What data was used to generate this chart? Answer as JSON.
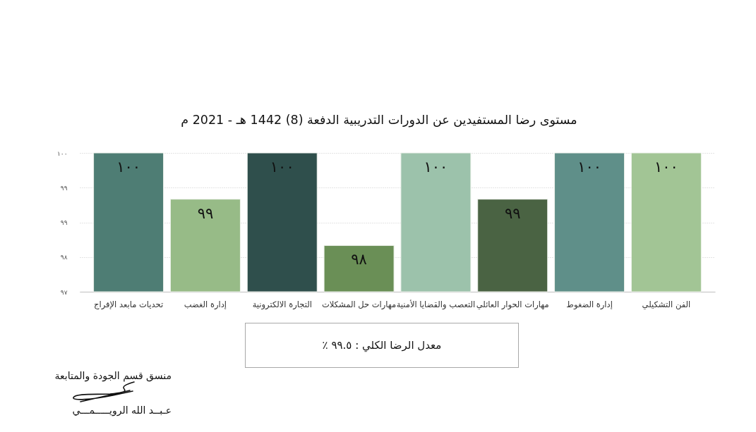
{
  "chart_data": {
    "type": "bar",
    "title": "مستوى رضا المستفيدين عن الدورات التدريبية الدفعة (8) 1442 هـ - 2021 م",
    "categories": [
      "تحديات مابعد الإفراج",
      "إدارة الغضب",
      "التجارة الالكترونية",
      "مهارات حل المشكلات",
      "التعصب والقضايا الأمنية",
      "مهارات الحوار العائلي",
      "إدارة الضغوط",
      "الفن التشكيلي"
    ],
    "values": [
      100,
      99,
      100,
      98,
      100,
      99,
      100,
      100
    ],
    "value_labels": [
      "١٠٠",
      "٩٩",
      "١٠٠",
      "٩٨",
      "١٠٠",
      "٩٩",
      "١٠٠",
      "١٠٠"
    ],
    "colors": [
      "#4e7d74",
      "#97bb87",
      "#2f4f4c",
      "#6a8f56",
      "#9cc2ab",
      "#4a6343",
      "#5f8f89",
      "#a2c595"
    ],
    "ylim": [
      97,
      100
    ],
    "yticks": [
      {
        "value": 97,
        "label": "٩٧"
      },
      {
        "value": 97.75,
        "label": "٩٨"
      },
      {
        "value": 98.5,
        "label": "٩٩"
      },
      {
        "value": 99.25,
        "label": "٩٩"
      },
      {
        "value": 100,
        "label": "١٠٠"
      }
    ],
    "grid": "y",
    "annotations": [
      "معدل الرضا الكلي : ٩٩.٥ ٪",
      "منسق قسم الجودة والمتابعة",
      "عـبــد الله الرويـــــمـــي"
    ]
  }
}
